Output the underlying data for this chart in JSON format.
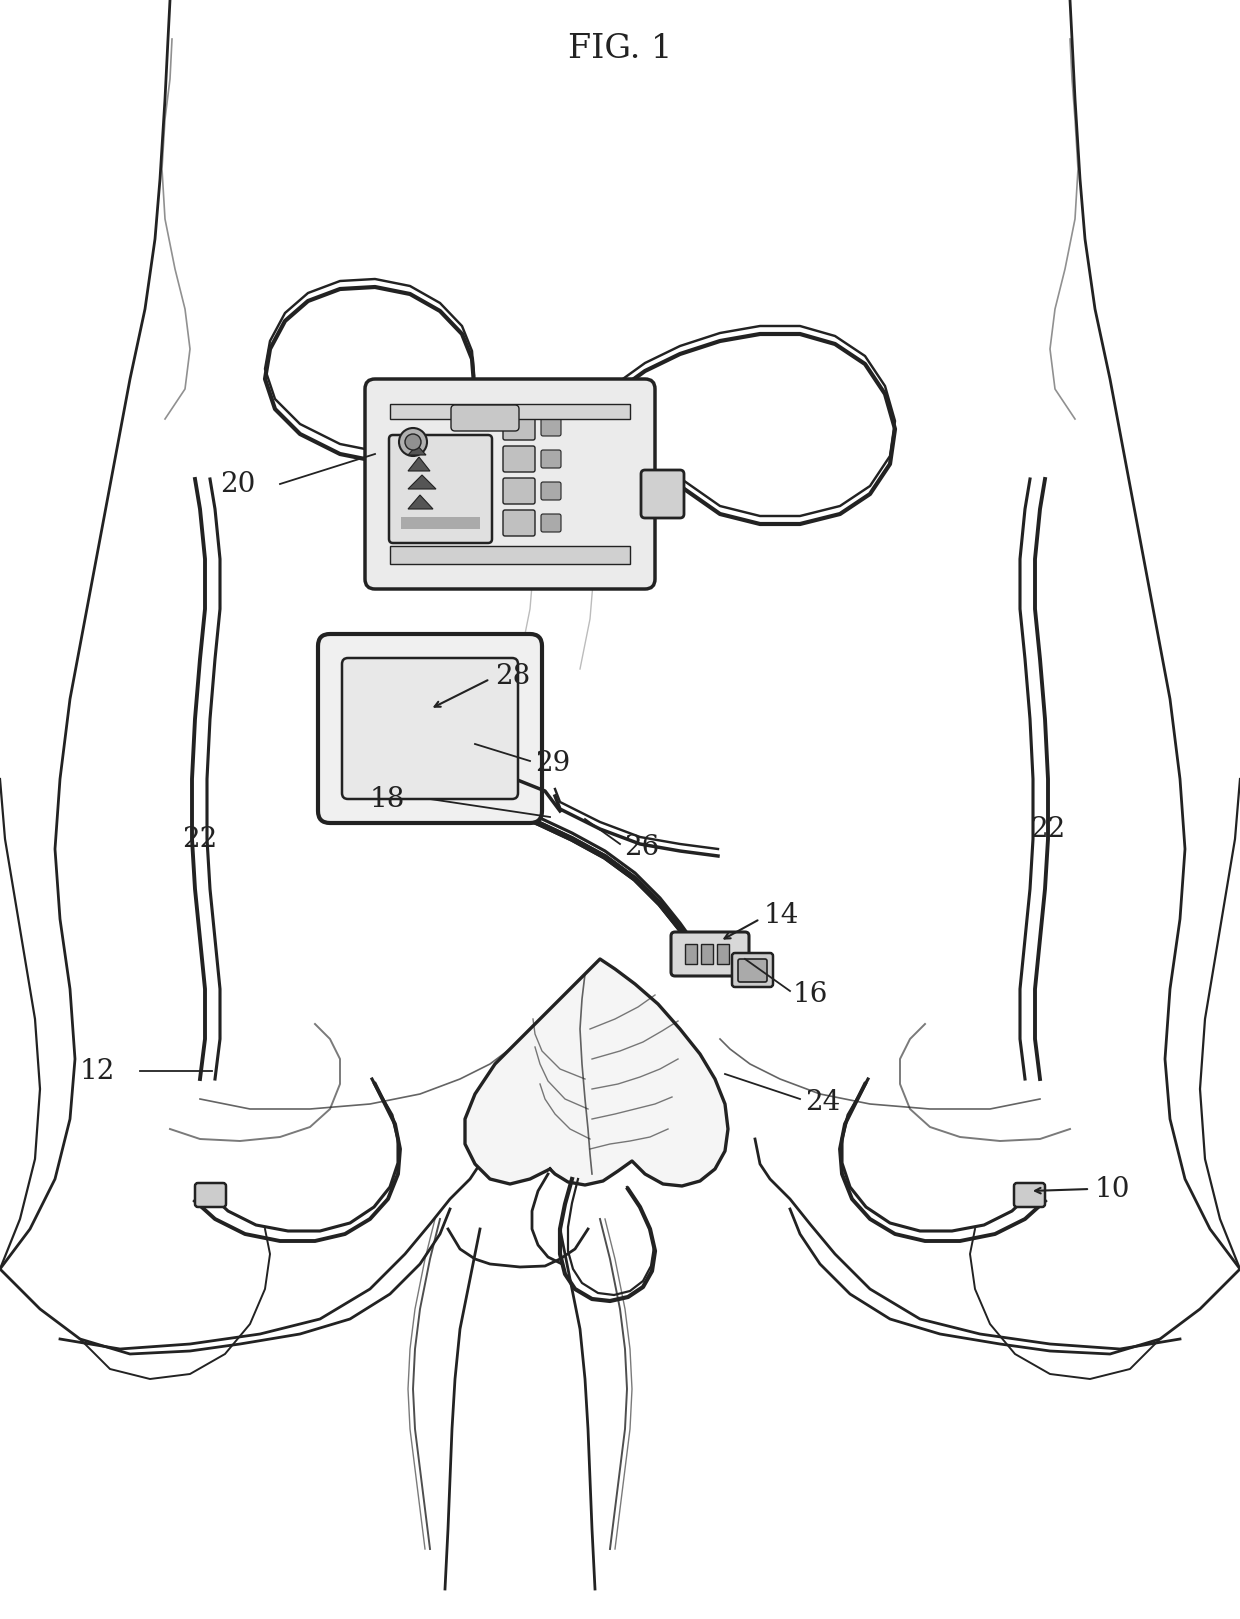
{
  "background_color": "#ffffff",
  "line_color": "#222222",
  "label_color": "#222222",
  "fig_label": "FIG. 1",
  "label_fontsize": 20,
  "fig_label_fontsize": 24,
  "lw_body": 2.0,
  "lw_vest": 2.8,
  "lw_device": 2.0,
  "lw_cable": 2.5
}
